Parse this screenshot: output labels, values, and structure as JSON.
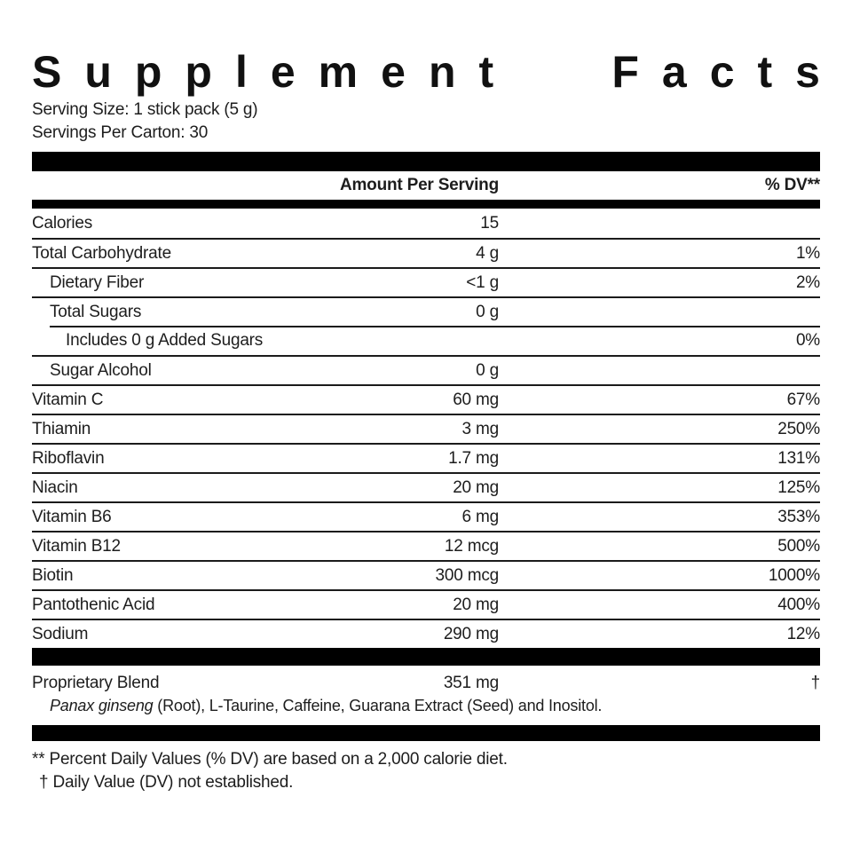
{
  "title_words": [
    "Supplement",
    "Facts"
  ],
  "serving": {
    "size_label": "Serving Size: 1 stick pack (5 g)",
    "per_carton_label": "Servings Per Carton: 30"
  },
  "table": {
    "amount_header": "Amount Per Serving",
    "dv_header": "% DV**",
    "rows": [
      {
        "name": "Calories",
        "amount": "15",
        "dv": "",
        "indent": 0,
        "rule": "none"
      },
      {
        "name": "Total Carbohydrate",
        "amount": "4 g",
        "dv": "1%",
        "indent": 0,
        "rule": "full"
      },
      {
        "name": "Dietary Fiber",
        "amount": "<1 g",
        "dv": "2%",
        "indent": 1,
        "rule": "full"
      },
      {
        "name": "Total Sugars",
        "amount": "0 g",
        "dv": "",
        "indent": 1,
        "rule": "full"
      },
      {
        "name": "Includes 0 g Added Sugars",
        "amount": "",
        "dv": "0%",
        "indent": 2,
        "rule": "indent"
      },
      {
        "name": "Sugar Alcohol",
        "amount": "0 g",
        "dv": "",
        "indent": 1,
        "rule": "full"
      },
      {
        "name": "Vitamin C",
        "amount": "60 mg",
        "dv": "67%",
        "indent": 0,
        "rule": "full"
      },
      {
        "name": "Thiamin",
        "amount": "3 mg",
        "dv": "250%",
        "indent": 0,
        "rule": "full"
      },
      {
        "name": "Riboflavin",
        "amount": "1.7 mg",
        "dv": "131%",
        "indent": 0,
        "rule": "full"
      },
      {
        "name": "Niacin",
        "amount": "20 mg",
        "dv": "125%",
        "indent": 0,
        "rule": "full"
      },
      {
        "name": "Vitamin B6",
        "amount": "6 mg",
        "dv": "353%",
        "indent": 0,
        "rule": "full"
      },
      {
        "name": "Vitamin B12",
        "amount": "12 mcg",
        "dv": "500%",
        "indent": 0,
        "rule": "full"
      },
      {
        "name": "Biotin",
        "amount": "300 mcg",
        "dv": "1000%",
        "indent": 0,
        "rule": "full"
      },
      {
        "name": "Pantothenic Acid",
        "amount": "20 mg",
        "dv": "400%",
        "indent": 0,
        "rule": "full"
      },
      {
        "name": "Sodium",
        "amount": "290 mg",
        "dv": "12%",
        "indent": 0,
        "rule": "full"
      }
    ]
  },
  "blend": {
    "name": "Proprietary Blend",
    "amount": "351 mg",
    "dv": "†",
    "ingredients_italic": "Panax ginseng",
    "ingredients_rest": " (Root), L-Taurine, Caffeine, Guarana Extract (Seed) and Inositol."
  },
  "footnotes": [
    "** Percent Daily Values (% DV) are based on a 2,000 calorie diet.",
    "† Daily Value (DV) not established."
  ],
  "colors": {
    "bar": "#000000",
    "text": "#1d1d1d",
    "rule": "#1b1b1b",
    "background": "#ffffff"
  }
}
